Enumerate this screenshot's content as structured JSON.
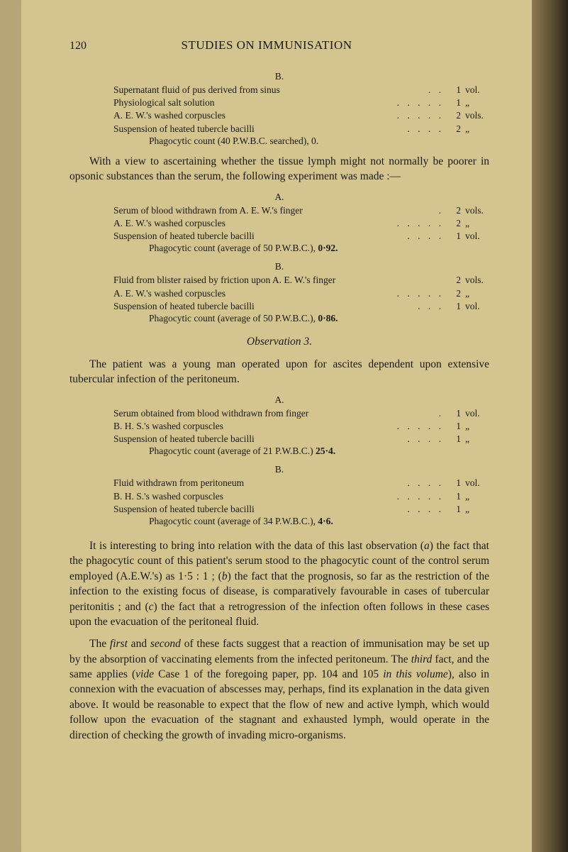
{
  "header": {
    "pageNumber": "120",
    "title": "STUDIES ON IMMUNISATION"
  },
  "block1": {
    "sectionLabel": "B.",
    "lines": [
      {
        "text": "Supernatant fluid of pus derived from sinus",
        "value": "1",
        "unit": "vol."
      },
      {
        "text": "Physiological salt solution",
        "value": "1",
        "unit": "„"
      },
      {
        "text": "A. E. W.'s washed corpuscles",
        "value": "2",
        "unit": "vols."
      },
      {
        "text": "Suspension of heated tubercle bacilli",
        "value": "2",
        "unit": "„"
      }
    ],
    "final": {
      "text": "Phagocytic count (40 P.W.B.C. searched),",
      "value": "0."
    }
  },
  "para1": "With a view to ascertaining whether the tissue lymph might not normally be poorer in opsonic substances than the serum, the following experiment was made :—",
  "block2": {
    "sectionLabel": "A.",
    "lines": [
      {
        "text": "Serum of blood withdrawn from A. E. W.'s finger",
        "value": "2",
        "unit": "vols."
      },
      {
        "text": "A. E. W.'s washed corpuscles",
        "value": "2",
        "unit": "„"
      },
      {
        "text": "Suspension of heated tubercle bacilli",
        "value": "1",
        "unit": "vol."
      }
    ],
    "final": {
      "text": "Phagocytic count (average of 50 P.W.B.C.),",
      "value": "0·92."
    }
  },
  "block3": {
    "sectionLabel": "B.",
    "lines": [
      {
        "text": "Fluid from blister raised by friction upon A. E. W.'s finger",
        "value": "2",
        "unit": "vols."
      },
      {
        "text": "A. E. W.'s washed corpuscles",
        "value": "2",
        "unit": "„"
      },
      {
        "text": "Suspension of heated tubercle bacilli",
        "value": "1",
        "unit": "vol."
      }
    ],
    "final": {
      "text": "Phagocytic count (average of 50 P.W.B.C.),",
      "value": "0·86."
    }
  },
  "obsTitle": "Observation 3.",
  "para2": "The patient was a young man operated upon for ascites dependent upon extensive tubercular infection of the peritoneum.",
  "block4": {
    "sectionLabel": "A.",
    "lines": [
      {
        "text": "Serum obtained from blood withdrawn from finger",
        "value": "1",
        "unit": "vol."
      },
      {
        "text": "B. H. S.'s washed corpuscles",
        "value": "1",
        "unit": "„"
      },
      {
        "text": "Suspension of heated tubercle bacilli",
        "value": "1",
        "unit": "„"
      }
    ],
    "final": {
      "text": "Phagocytic count (average of 21 P.W.B.C.)",
      "value": "25·4."
    }
  },
  "block5": {
    "sectionLabel": "B.",
    "lines": [
      {
        "text": "Fluid withdrawn from peritoneum",
        "value": "1",
        "unit": "vol."
      },
      {
        "text": "B. H. S.'s washed corpuscles",
        "value": "1",
        "unit": "„"
      },
      {
        "text": "Suspension of heated tubercle bacilli",
        "value": "1",
        "unit": "„"
      }
    ],
    "final": {
      "text": "Phagocytic count (average of 34 P.W.B.C.),",
      "value": "4·6."
    }
  },
  "para3a": "It is interesting to bring into relation with the data of this last observation (",
  "para3b": ") the fact that the phagocytic count of this patient's serum stood to the phagocytic count of the control serum employed (A.E.W.'s) as 1·5 : 1 ; (",
  "para3c": ") the fact that the prognosis, so far as the restriction of the infection to the existing focus of disease, is comparatively favourable in cases of tubercular peritonitis ; and (",
  "para3d": ") the fact that a retrogression of the infection often follows in these cases upon the evacuation of the peritoneal fluid.",
  "para4a": "The ",
  "para4b": " and ",
  "para4c": " of these facts suggest that a reaction of immunisation may be set up by the absorption of vaccinating elements from the infected peritoneum. The ",
  "para4d": " fact, and the same applies (",
  "para4e": " Case 1 of the foregoing paper, pp. 104 and 105 ",
  "para4f": "), also in connexion with the evacuation of abscesses may, perhaps, find its explanation in the data given above. It would be reasonable to expect that the flow of new and active lymph, which would follow upon the evacuation of the stagnant and exhausted lymph, would operate in the direction of checking the growth of invading micro-organisms.",
  "italics": {
    "a": "a",
    "b": "b",
    "c": "c",
    "first": "first",
    "second": "second",
    "third": "third",
    "vide": "vide",
    "inThisVolume": "in this volume"
  },
  "style": {
    "pageBg": "#d4c490",
    "bodyBg": "#b8a678",
    "textColor": "#1a1812"
  }
}
